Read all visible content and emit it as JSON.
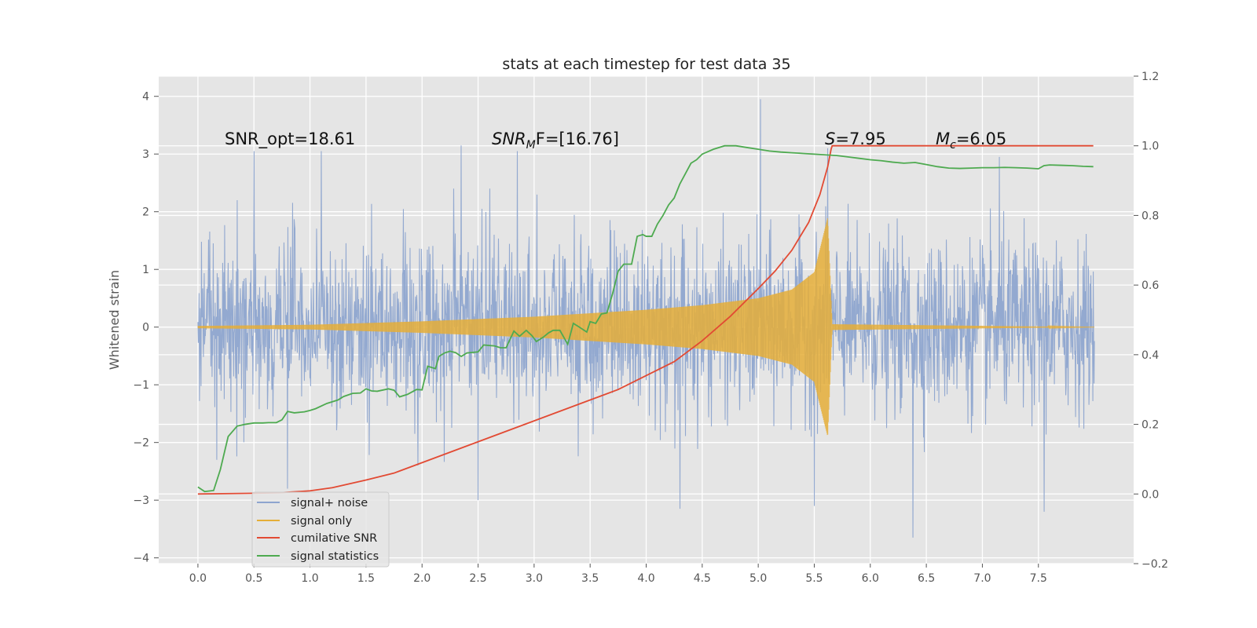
{
  "chart_data": {
    "type": "line",
    "title": "stats at each timestep for test data 35",
    "ylabel": "Whitened strain",
    "xlabel": "",
    "xlim": [
      -0.35,
      8.35
    ],
    "ylim": [
      -4.1,
      4.35
    ],
    "y2lim": [
      -0.2,
      1.2
    ],
    "xticks": [
      "0.0",
      "0.5",
      "1.0",
      "1.5",
      "2.0",
      "2.5",
      "3.0",
      "3.5",
      "4.0",
      "4.5",
      "5.0",
      "5.5",
      "6.0",
      "6.5",
      "7.0",
      "7.5"
    ],
    "yticks": [
      "4",
      "3",
      "2",
      "1",
      "0",
      "−1",
      "−2",
      "−3",
      "−4"
    ],
    "y2ticks": [
      "1.2",
      "1.0",
      "0.8",
      "0.6",
      "0.4",
      "0.2",
      "0.0",
      "−0.2"
    ],
    "grid": true,
    "legend_placement": "lower-left",
    "colors": {
      "background": "#e5e5e5",
      "grid": "#ffffff",
      "noise": "#8ea5cf",
      "signal": "#e5ae38",
      "snr": "#e24a33",
      "stat": "#4eaa50"
    },
    "annotations": {
      "snr_opt": "SNR_opt=18.61",
      "snr_mf_main": "SNR",
      "snr_mf_sub": "M",
      "snr_mf_rest": "F=[16.76]",
      "s_main": "S",
      "s_rest": "=7.95",
      "mc_main": "M",
      "mc_sub": "c",
      "mc_rest": "=6.05"
    },
    "series": [
      {
        "name": "signal+ noise",
        "axis": "left",
        "description_style": "dense noise band",
        "x_range": [
          0.0,
          8.0
        ],
        "band_y": [
          -1.5,
          1.5
        ],
        "peaks_max": [
          [
            0.35,
            2.2
          ],
          [
            0.5,
            3.05
          ],
          [
            1.1,
            3.05
          ],
          [
            2.35,
            3.15
          ],
          [
            2.85,
            3.05
          ],
          [
            5.02,
            3.95
          ],
          [
            5.62,
            3.1
          ],
          [
            7.15,
            2.95
          ]
        ],
        "peaks_min": [
          [
            0.17,
            -2.3
          ],
          [
            0.8,
            -2.8
          ],
          [
            2.5,
            -3.0
          ],
          [
            4.3,
            -3.15
          ],
          [
            5.5,
            -3.1
          ],
          [
            6.38,
            -3.65
          ],
          [
            7.55,
            -3.2
          ]
        ]
      },
      {
        "name": "signal only",
        "axis": "left",
        "envelope": [
          [
            0.0,
            0.02
          ],
          [
            1.0,
            0.04
          ],
          [
            2.0,
            0.1
          ],
          [
            3.0,
            0.18
          ],
          [
            4.0,
            0.3
          ],
          [
            4.5,
            0.38
          ],
          [
            5.0,
            0.5
          ],
          [
            5.3,
            0.65
          ],
          [
            5.5,
            0.95
          ],
          [
            5.62,
            1.9
          ],
          [
            5.66,
            0.05
          ],
          [
            8.0,
            0.0
          ]
        ]
      },
      {
        "name": "cumilative SNR",
        "axis": "right",
        "x": [
          0.0,
          0.5,
          0.75,
          1.0,
          1.2,
          1.5,
          1.75,
          2.0,
          2.5,
          3.0,
          3.5,
          3.75,
          4.0,
          4.25,
          4.5,
          4.75,
          5.0,
          5.15,
          5.3,
          5.45,
          5.55,
          5.62,
          5.65,
          5.66,
          6.0,
          6.5,
          7.0,
          7.5,
          7.99
        ],
        "y": [
          0.0,
          0.002,
          0.004,
          0.009,
          0.018,
          0.04,
          0.06,
          0.09,
          0.15,
          0.21,
          0.27,
          0.3,
          0.34,
          0.38,
          0.44,
          0.51,
          0.59,
          0.64,
          0.7,
          0.78,
          0.86,
          0.94,
          0.99,
          1.0,
          1.0,
          1.0,
          1.0,
          1.0,
          1.0
        ],
        "x_start": 0.0
      },
      {
        "name": "signal statistics",
        "axis": "right",
        "x": [
          0.0,
          0.06,
          0.14,
          0.2,
          0.27,
          0.35,
          0.42,
          0.5,
          0.58,
          0.63,
          0.7,
          0.75,
          0.8,
          0.86,
          0.95,
          1.0,
          1.05,
          1.15,
          1.25,
          1.3,
          1.38,
          1.45,
          1.5,
          1.55,
          1.6,
          1.7,
          1.75,
          1.8,
          1.87,
          1.95,
          2.0,
          2.05,
          2.12,
          2.15,
          2.2,
          2.25,
          2.3,
          2.35,
          2.4,
          2.5,
          2.55,
          2.65,
          2.7,
          2.75,
          2.82,
          2.87,
          2.93,
          2.98,
          3.02,
          3.08,
          3.13,
          3.17,
          3.23,
          3.3,
          3.35,
          3.4,
          3.47,
          3.5,
          3.55,
          3.6,
          3.65,
          3.7,
          3.75,
          3.8,
          3.87,
          3.92,
          3.97,
          4.0,
          4.05,
          4.1,
          4.15,
          4.2,
          4.25,
          4.3,
          4.35,
          4.4,
          4.45,
          4.5,
          4.6,
          4.7,
          4.8,
          4.9,
          5.0,
          5.1,
          5.2,
          5.3,
          5.4,
          5.5,
          5.6,
          5.7,
          5.8,
          5.9,
          6.0,
          6.1,
          6.2,
          6.3,
          6.4,
          6.5,
          6.6,
          6.7,
          6.8,
          6.9,
          7.0,
          7.1,
          7.2,
          7.3,
          7.4,
          7.5,
          7.55,
          7.6,
          7.7,
          7.8,
          7.9,
          7.99
        ],
        "y": [
          0.02,
          0.007,
          0.01,
          0.07,
          0.165,
          0.195,
          0.2,
          0.204,
          0.204,
          0.205,
          0.205,
          0.213,
          0.237,
          0.233,
          0.236,
          0.24,
          0.245,
          0.26,
          0.27,
          0.28,
          0.289,
          0.29,
          0.302,
          0.296,
          0.295,
          0.302,
          0.298,
          0.279,
          0.286,
          0.3,
          0.299,
          0.367,
          0.36,
          0.395,
          0.405,
          0.41,
          0.406,
          0.395,
          0.405,
          0.408,
          0.428,
          0.425,
          0.42,
          0.42,
          0.468,
          0.453,
          0.47,
          0.455,
          0.438,
          0.45,
          0.463,
          0.47,
          0.47,
          0.43,
          0.49,
          0.48,
          0.465,
          0.495,
          0.49,
          0.517,
          0.52,
          0.575,
          0.64,
          0.66,
          0.66,
          0.74,
          0.745,
          0.74,
          0.74,
          0.775,
          0.8,
          0.83,
          0.85,
          0.89,
          0.92,
          0.95,
          0.96,
          0.976,
          0.99,
          1.0,
          1.0,
          0.995,
          0.99,
          0.985,
          0.982,
          0.98,
          0.978,
          0.976,
          0.974,
          0.972,
          0.968,
          0.964,
          0.96,
          0.957,
          0.953,
          0.95,
          0.952,
          0.946,
          0.94,
          0.936,
          0.935,
          0.936,
          0.937,
          0.937,
          0.938,
          0.937,
          0.936,
          0.934,
          0.943,
          0.945,
          0.944,
          0.943,
          0.941,
          0.94
        ]
      }
    ]
  }
}
